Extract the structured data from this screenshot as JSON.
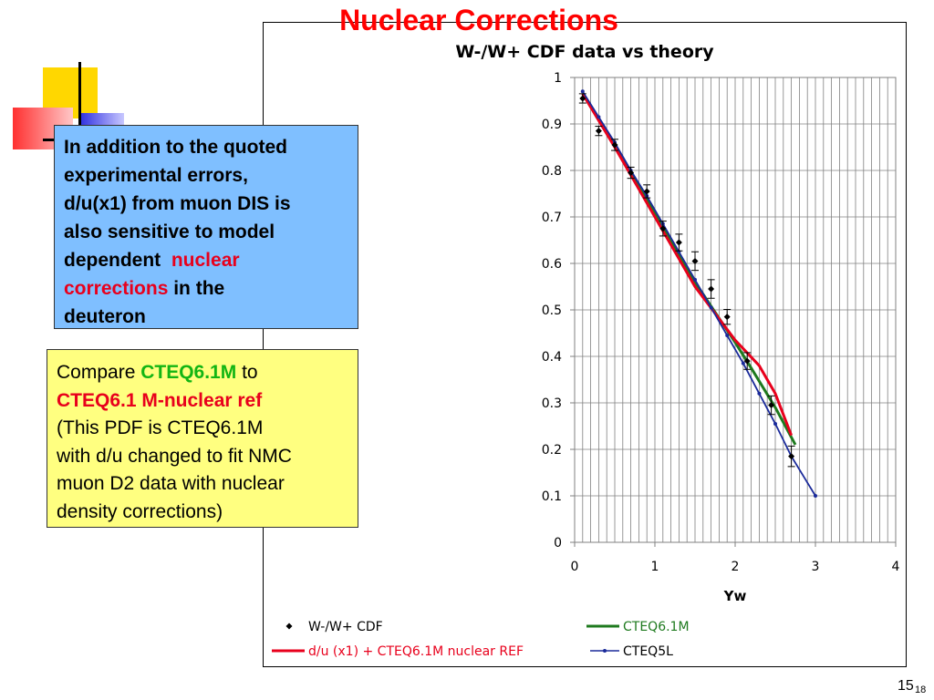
{
  "slide": {
    "title": "Nuclear Corrections",
    "box1_line1": "In addition to the quoted",
    "box1_line2": "experimental errors,",
    "box1_line3": "d/u(x1) from muon DIS is",
    "box1_line4": "also sensitive to model",
    "box1_line5a": "dependent  ",
    "box1_line5b": "nuclear",
    "box1_line6a": "corrections",
    "box1_line6b": " in the",
    "box1_line7": "deuteron",
    "box2_line1a": "Compare ",
    "box2_line1b": "CTEQ6.1M",
    "box2_line1c": " to",
    "box2_line2": "CTEQ6.1 M-nuclear ref",
    "box2_line3": "(This PDF is CTEQ6.1M",
    "box2_line4": "with d/u changed to fit NMC",
    "box2_line5": "muon D2 data with nuclear",
    "box2_line6": "density corrections)",
    "page_number": "15",
    "page_number_small": "18"
  },
  "colors": {
    "title": "#ff0000",
    "cdf": "#000000",
    "cteq61m": "#1e7a1e",
    "nuclear": "#e8001c",
    "cteq5l": "#1a2a9a"
  },
  "chart_data": {
    "type": "scatter",
    "title": "W-/W+ CDF data vs theory",
    "xlabel": "Yw",
    "ylabel": "",
    "xlim": [
      0,
      4
    ],
    "ylim": [
      0,
      1
    ],
    "xticks": [
      0,
      1,
      2,
      3,
      4
    ],
    "yticks": [
      0,
      0.1,
      0.2,
      0.3,
      0.4,
      0.5,
      0.6,
      0.7,
      0.8,
      0.9,
      1
    ],
    "grid": true,
    "legend_position": "bottom",
    "series": [
      {
        "name": "W-/W+ CDF",
        "kind": "points",
        "color": "#000000",
        "x": [
          0.1,
          0.3,
          0.5,
          0.7,
          0.9,
          1.1,
          1.3,
          1.5,
          1.7,
          1.9,
          2.15,
          2.45,
          2.7
        ],
        "y": [
          0.955,
          0.885,
          0.855,
          0.795,
          0.755,
          0.675,
          0.645,
          0.605,
          0.545,
          0.485,
          0.39,
          0.295,
          0.185
        ],
        "err": [
          0.01,
          0.01,
          0.012,
          0.012,
          0.014,
          0.016,
          0.018,
          0.02,
          0.02,
          0.016,
          0.018,
          0.02,
          0.022
        ]
      },
      {
        "name": "CTEQ6.1M",
        "kind": "line",
        "color": "#1e7a1e",
        "x": [
          0.1,
          0.5,
          1.0,
          1.5,
          2.0,
          2.2,
          2.5,
          2.75
        ],
        "y": [
          0.965,
          0.855,
          0.71,
          0.56,
          0.43,
          0.375,
          0.29,
          0.21
        ]
      },
      {
        "name": "d/u (x1) + CTEQ6.1M nuclear REF",
        "kind": "line",
        "color": "#e8001c",
        "x": [
          0.1,
          0.5,
          1.0,
          1.5,
          2.0,
          2.3,
          2.5,
          2.7
        ],
        "y": [
          0.965,
          0.85,
          0.7,
          0.55,
          0.435,
          0.38,
          0.32,
          0.23
        ]
      },
      {
        "name": "CTEQ5L",
        "kind": "line-markers",
        "color": "#1a2a9a",
        "x": [
          0.1,
          0.3,
          0.5,
          0.7,
          0.9,
          1.1,
          1.3,
          1.5,
          1.7,
          1.9,
          2.1,
          2.3,
          2.5,
          2.7,
          3.0
        ],
        "y": [
          0.97,
          0.915,
          0.86,
          0.8,
          0.745,
          0.685,
          0.625,
          0.565,
          0.505,
          0.445,
          0.385,
          0.32,
          0.255,
          0.185,
          0.1
        ]
      }
    ]
  }
}
